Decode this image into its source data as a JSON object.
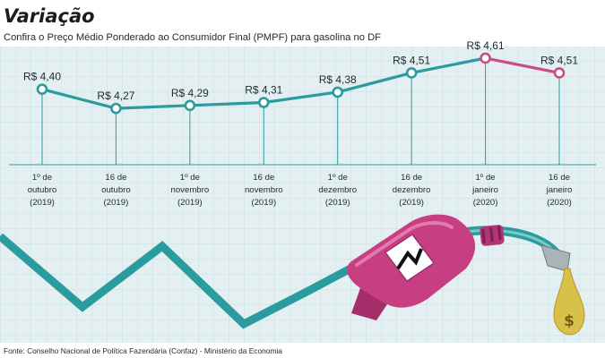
{
  "title": "Variação",
  "subtitle": "Confira o Preço Médio Ponderado ao Consumidor Final (PMPF) para gasolina no DF",
  "source": "Fonte: Conselho Nacional de Política Fazendária (Confaz) - Ministério da Economia",
  "colors": {
    "background": "#e3eff1",
    "grid": "#c9dfe3",
    "line": "#2a9c9f",
    "line_highlight": "#cc4a86",
    "pump": "#c83e82",
    "drop": "#d9c04a"
  },
  "chart_data": {
    "type": "line",
    "title": "Variação",
    "subtitle": "Confira o Preço Médio Ponderado ao Consumidor Final (PMPF) para gasolina no DF",
    "xlabel": "",
    "ylabel": "",
    "ylim": [
      4.18,
      4.64
    ],
    "value_prefix": "R$ ",
    "categories": [
      [
        "1º de",
        "outubro",
        "(2019)"
      ],
      [
        "16 de",
        "outubro",
        "(2019)"
      ],
      [
        "1º de",
        "novembro",
        "(2019)"
      ],
      [
        "16 de",
        "novembro",
        "(2019)"
      ],
      [
        "1º de",
        "dezembro",
        "(2019)"
      ],
      [
        "16 de",
        "dezembro",
        "(2019)"
      ],
      [
        "1º de",
        "janeiro",
        "(2020)"
      ],
      [
        "16 de",
        "janeiro",
        "(2020)"
      ]
    ],
    "values": [
      4.4,
      4.27,
      4.29,
      4.31,
      4.38,
      4.51,
      4.61,
      4.51
    ],
    "value_labels": [
      "R$ 4,40",
      "R$ 4,27",
      "R$ 4,29",
      "R$ 4,31",
      "R$ 4,38",
      "R$ 4,51",
      "R$ 4,61",
      "R$ 4,51"
    ],
    "highlight_last_segment": true
  }
}
